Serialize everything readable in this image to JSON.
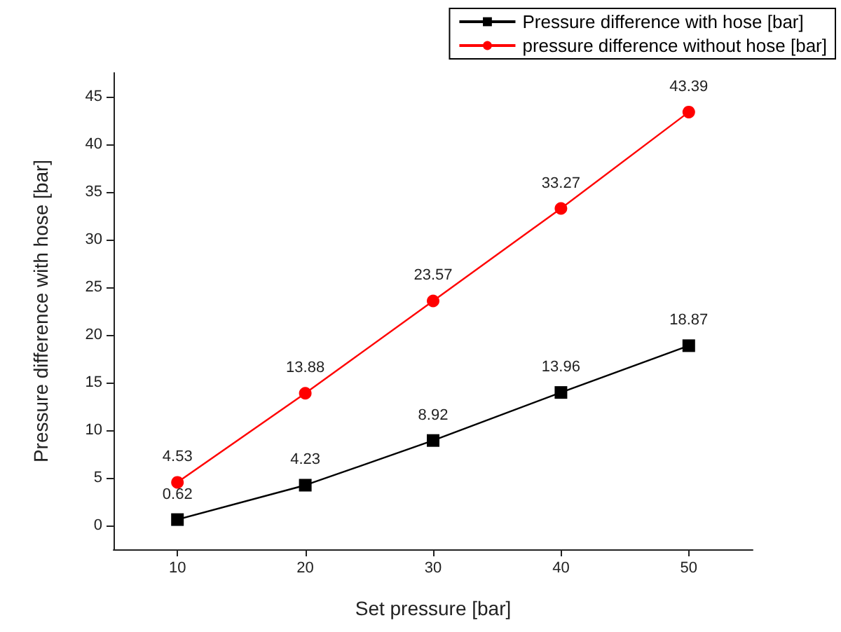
{
  "chart_data": {
    "type": "line",
    "xlabel": "Set pressure [bar]",
    "ylabel": "Pressure difference with hose [bar]",
    "x": [
      10,
      20,
      30,
      40,
      50
    ],
    "series": [
      {
        "name": "Pressure difference with hose [bar]",
        "color": "#000000",
        "marker": "square",
        "values": [
          0.62,
          4.23,
          8.92,
          13.96,
          18.87
        ]
      },
      {
        "name": "pressure difference without hose [bar]",
        "color": "#ff0000",
        "marker": "circle",
        "values": [
          4.53,
          13.88,
          23.57,
          33.27,
          43.39
        ]
      }
    ],
    "xlim": [
      5,
      55
    ],
    "xticks": [
      10,
      20,
      30,
      40,
      50
    ],
    "ylim": [
      -2.5,
      47.5
    ],
    "yticks": [
      0,
      5,
      10,
      15,
      20,
      25,
      30,
      35,
      40,
      45
    ],
    "data_labels": true,
    "grid": false,
    "legend": "top right",
    "line_style": "solid"
  }
}
